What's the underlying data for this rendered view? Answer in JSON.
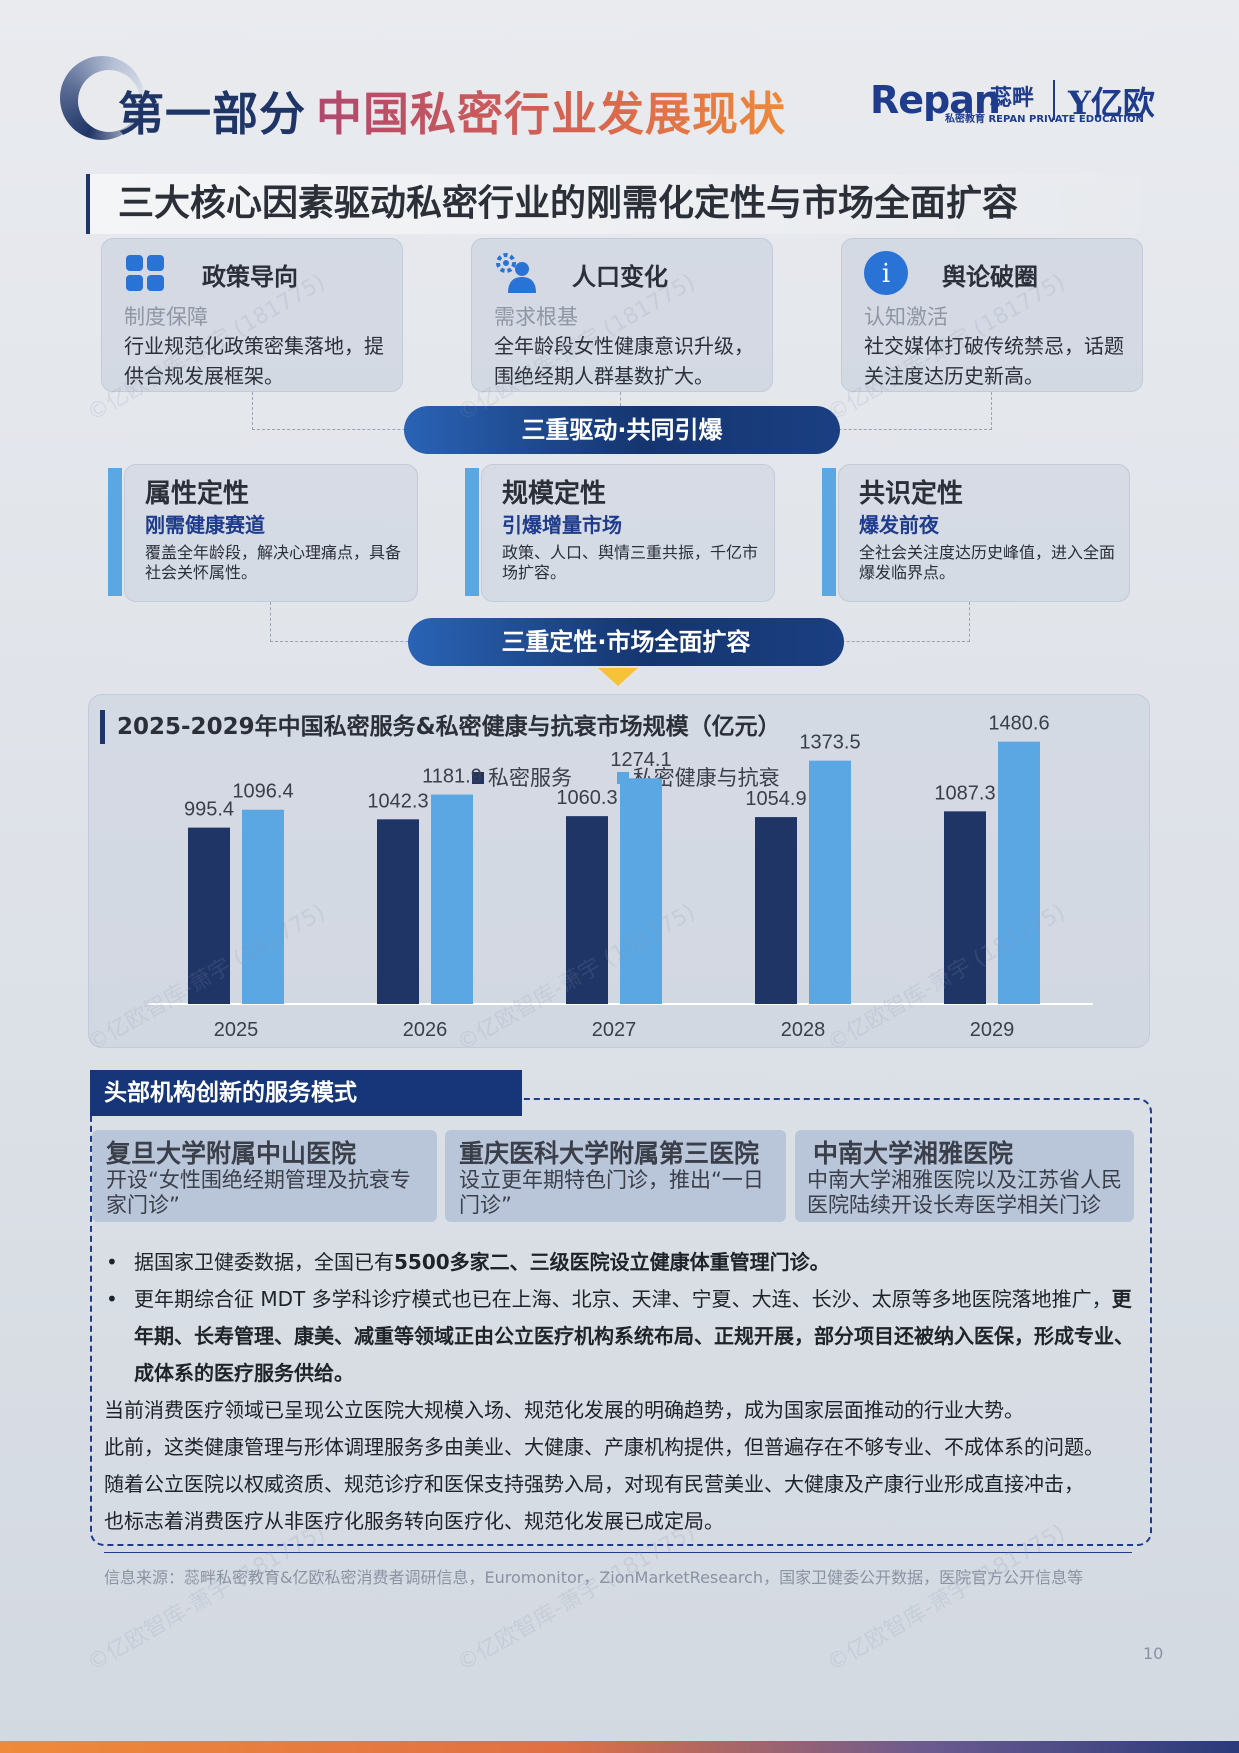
{
  "header": {
    "part_label": "第一部分",
    "part_title": "中国私密行业发展现状",
    "logo_repan": "Repan",
    "logo_repan_cn": "蕊畔",
    "logo_repan_sub": "私密教育 REPAN PRIVATE EDUCATION",
    "logo_yiou": "亿欧"
  },
  "section_title": "三大核心因素驱动私密行业的刚需化定性与市场全面扩容",
  "factors": [
    {
      "icon": "grid-icon",
      "title": "政策导向",
      "subtitle": "制度保障",
      "desc": "行业规范化政策密集落地，提供合规发展框架。"
    },
    {
      "icon": "people-gear-icon",
      "title": "人口变化",
      "subtitle": "需求根基",
      "desc": "全年龄段女性健康意识升级，围绝经期人群基数扩大。"
    },
    {
      "icon": "info-icon",
      "title": "舆论破圈",
      "subtitle": "认知激活",
      "desc": "社交媒体打破传统禁忌，话题关注度达历史新高。"
    }
  ],
  "pill_1": "三重驱动·共同引爆",
  "definitions": [
    {
      "title": "属性定性",
      "subtitle": "刚需健康赛道",
      "desc": "覆盖全年龄段，解决心理痛点，具备社会关怀属性。"
    },
    {
      "title": "规模定性",
      "subtitle": "引爆增量市场",
      "desc": "政策、人口、舆情三重共振，千亿市场扩容。"
    },
    {
      "title": "共识定性",
      "subtitle": "爆发前夜",
      "desc": "全社会关注度达历史峰值，进入全面爆发临界点。"
    }
  ],
  "pill_2": "三重定性·市场全面扩容",
  "chart_data": {
    "type": "bar",
    "title": "2025-2029年中国私密服务&私密健康与抗衰市场规模（亿元）",
    "categories": [
      "2025",
      "2026",
      "2027",
      "2028",
      "2029"
    ],
    "series": [
      {
        "name": "私密服务",
        "color": "#1f3566",
        "values": [
          995.4,
          1042.3,
          1060.3,
          1054.9,
          1087.3
        ]
      },
      {
        "name": "私密健康与抗衰",
        "color": "#5aa7e4",
        "values": [
          1096.4,
          1181.9,
          1274.1,
          1373.5,
          1480.6
        ]
      }
    ],
    "value_labels": [
      "995.4",
      "1096.4",
      "1042.3",
      "1181.9",
      "1060.3",
      "1274.1",
      "1054.9",
      "1373.5",
      "1087.3",
      "1480.6"
    ],
    "xlabel": "",
    "ylabel": "",
    "ylim": [
      0,
      1600
    ],
    "legend": "top-center",
    "grid": false
  },
  "services": {
    "header": "头部机构创新的服务模式",
    "hospitals": [
      {
        "name": "复旦大学附属中山医院",
        "desc": "开设“女性围绝经期管理及抗衰专家门诊”"
      },
      {
        "name": "重庆医科大学附属第三医院",
        "desc": "设立更年期特色门诊，推出“一日门诊”"
      },
      {
        "name": "中南大学湘雅医院",
        "desc": "中南大学湘雅医院以及江苏省人民医院陆续开设长寿医学相关门诊"
      }
    ],
    "bullet_1_pre": "据国家卫健委数据，全国已有",
    "bullet_1_bold": "5500多家二、三级医院设立健康体重管理门诊。",
    "bullet_2_pre": "更年期综合征 MDT 多学科诊疗模式也已在上海、北京、天津、宁夏、大连、长沙、太原等多地医院落地推广，",
    "bullet_2_bold": "更年期、长寿管理、康美、减重等领域正由公立医疗机构系统布局、正规开展，部分项目还被纳入医保，形成专业、成体系的医疗服务供给。",
    "paragraphs": [
      "当前消费医疗领域已呈现公立医院大规模入场、规范化发展的明确趋势，成为国家层面推动的行业大势。",
      "此前，这类健康管理与形体调理服务多由美业、大健康、产康机构提供，但普遍存在不够专业、不成体系的问题。",
      "随着公立医院以权威资质、规范诊疗和医保支持强势入局，对现有民营美业、大健康及产康行业形成直接冲击，",
      "也标志着消费医疗从非医疗化服务转向医疗化、规范化发展已成定局。"
    ]
  },
  "source": "信息来源：蕊畔私密教育&亿欧私密消费者调研信息，Euromonitor，ZionMarketResearch，国家卫健委公开数据，医院官方公开信息等",
  "page_number": "10",
  "watermark": "©亿欧智库-萧宇 (181775)",
  "colors": {
    "navy": "#1f3566",
    "blue": "#1f3c8c",
    "light_blue": "#5aa7e4",
    "accent_orange": "#ee8a3a"
  }
}
